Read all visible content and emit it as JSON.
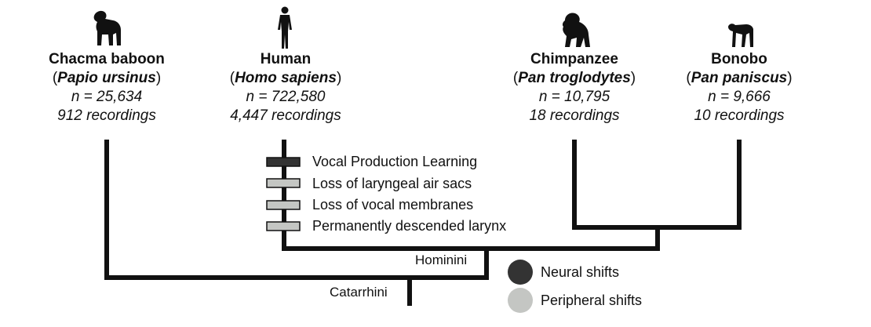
{
  "taxa": [
    {
      "common_name": "Chacma baboon",
      "scientific_name": "Papio ursinus",
      "sample_size": "n = 25,634",
      "recordings": "912 recordings",
      "silhouette": "baboon-silhouette-icon"
    },
    {
      "common_name": "Human",
      "scientific_name": "Homo sapiens",
      "sample_size": "n = 722,580",
      "recordings": "4,447 recordings",
      "silhouette": "human-silhouette-icon"
    },
    {
      "common_name": "Chimpanzee",
      "scientific_name": "Pan troglodytes",
      "sample_size": "n = 10,795",
      "recordings": "18 recordings",
      "silhouette": "chimpanzee-silhouette-icon"
    },
    {
      "common_name": "Bonobo",
      "scientific_name": "Pan paniscus",
      "sample_size": "n = 9,666",
      "recordings": "10 recordings",
      "silhouette": "bonobo-silhouette-icon"
    }
  ],
  "traits": [
    {
      "label": "Vocal Production Learning",
      "shift_type": "neural"
    },
    {
      "label": "Loss of laryngeal air sacs",
      "shift_type": "peripheral"
    },
    {
      "label": "Loss of vocal membranes",
      "shift_type": "peripheral"
    },
    {
      "label": "Permanently descended larynx",
      "shift_type": "peripheral"
    }
  ],
  "nodes": {
    "hominini": "Hominini",
    "catarrhini": "Catarrhini"
  },
  "legend": {
    "neural": {
      "label": "Neural shifts",
      "color": "#333333"
    },
    "peripheral": {
      "label": "Peripheral shifts",
      "color": "#c4c6c3"
    }
  },
  "colors": {
    "branch": "#111111",
    "neural_marker": "#333333",
    "peripheral_marker": "#c4c6c3"
  }
}
